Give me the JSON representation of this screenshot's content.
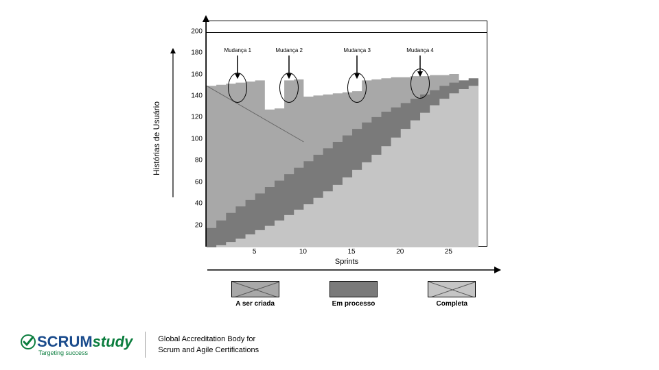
{
  "chart": {
    "type": "stacked-area",
    "background_color": "#ffffff",
    "border_color": "#000000",
    "y_axis": {
      "label": "Histórias de Usuário",
      "min": 0,
      "max": 210,
      "ticks": [
        20,
        40,
        60,
        80,
        100,
        120,
        140,
        160,
        180,
        200
      ],
      "reference_line_at": 200,
      "fontsize": 10,
      "label_fontsize": 12
    },
    "x_axis": {
      "label": "Sprints",
      "min": 0,
      "max": 29,
      "ticks": [
        5,
        10,
        15,
        20,
        25
      ],
      "fontsize": 10,
      "label_fontsize": 11
    },
    "series": {
      "completa": {
        "color": "#c5c5c5",
        "values": [
          0,
          2,
          5,
          8,
          12,
          16,
          20,
          25,
          30,
          35,
          40,
          46,
          52,
          58,
          65,
          72,
          79,
          86,
          94,
          102,
          110,
          118,
          125,
          132,
          138,
          143,
          147,
          150,
          152
        ]
      },
      "em_processo": {
        "color": "#7a7a7a",
        "values": [
          18,
          25,
          32,
          38,
          44,
          50,
          56,
          62,
          68,
          74,
          80,
          86,
          92,
          98,
          104,
          110,
          116,
          121,
          126,
          130,
          134,
          138,
          142,
          146,
          150,
          153,
          155,
          157,
          158
        ]
      },
      "a_ser_criada": {
        "color": "#a8a8a8",
        "values": [
          150,
          151,
          152,
          153,
          154,
          155,
          128,
          129,
          155,
          156,
          140,
          141,
          142,
          143,
          144,
          145,
          155,
          156,
          157,
          158,
          158,
          159,
          159,
          160,
          160,
          161,
          155,
          156,
          156
        ]
      }
    },
    "trend_line": {
      "color": "#666666",
      "stroke_width": 1,
      "points": [
        [
          0,
          150
        ],
        [
          10,
          98
        ]
      ]
    },
    "annotations": [
      {
        "label": "Mudança 1",
        "x": 3.2,
        "arrow_y_from": 178,
        "arrow_y_to": 160,
        "ellipse_x": 3.2,
        "ellipse_y": 148,
        "ellipse_rx": 14,
        "ellipse_ry": 22
      },
      {
        "label": "Mudança 2",
        "x": 8.5,
        "arrow_y_from": 178,
        "arrow_y_to": 160,
        "ellipse_x": 8.5,
        "ellipse_y": 148,
        "ellipse_rx": 14,
        "ellipse_ry": 22
      },
      {
        "label": "Mudança 3",
        "x": 15.5,
        "arrow_y_from": 178,
        "arrow_y_to": 160,
        "ellipse_x": 15.5,
        "ellipse_y": 148,
        "ellipse_rx": 14,
        "ellipse_ry": 22
      },
      {
        "label": "Mudança 4",
        "x": 22,
        "arrow_y_from": 178,
        "arrow_y_to": 162,
        "ellipse_x": 22,
        "ellipse_y": 152,
        "ellipse_rx": 14,
        "ellipse_ry": 22
      }
    ],
    "legend": [
      {
        "label": "A ser criada",
        "color": "#a8a8a8",
        "hatch": true
      },
      {
        "label": "Em processo",
        "color": "#7a7a7a",
        "hatch": false
      },
      {
        "label": "Completa",
        "color": "#c5c5c5",
        "hatch": true
      }
    ]
  },
  "footer": {
    "logo_text_1": "SCRUM",
    "logo_text_2": "study",
    "logo_color_1": "#1a4b8c",
    "logo_color_2": "#0b7d3e",
    "tagline": "Targeting success",
    "line1": "Global Accreditation Body for",
    "line2": "Scrum and Agile Certifications"
  }
}
